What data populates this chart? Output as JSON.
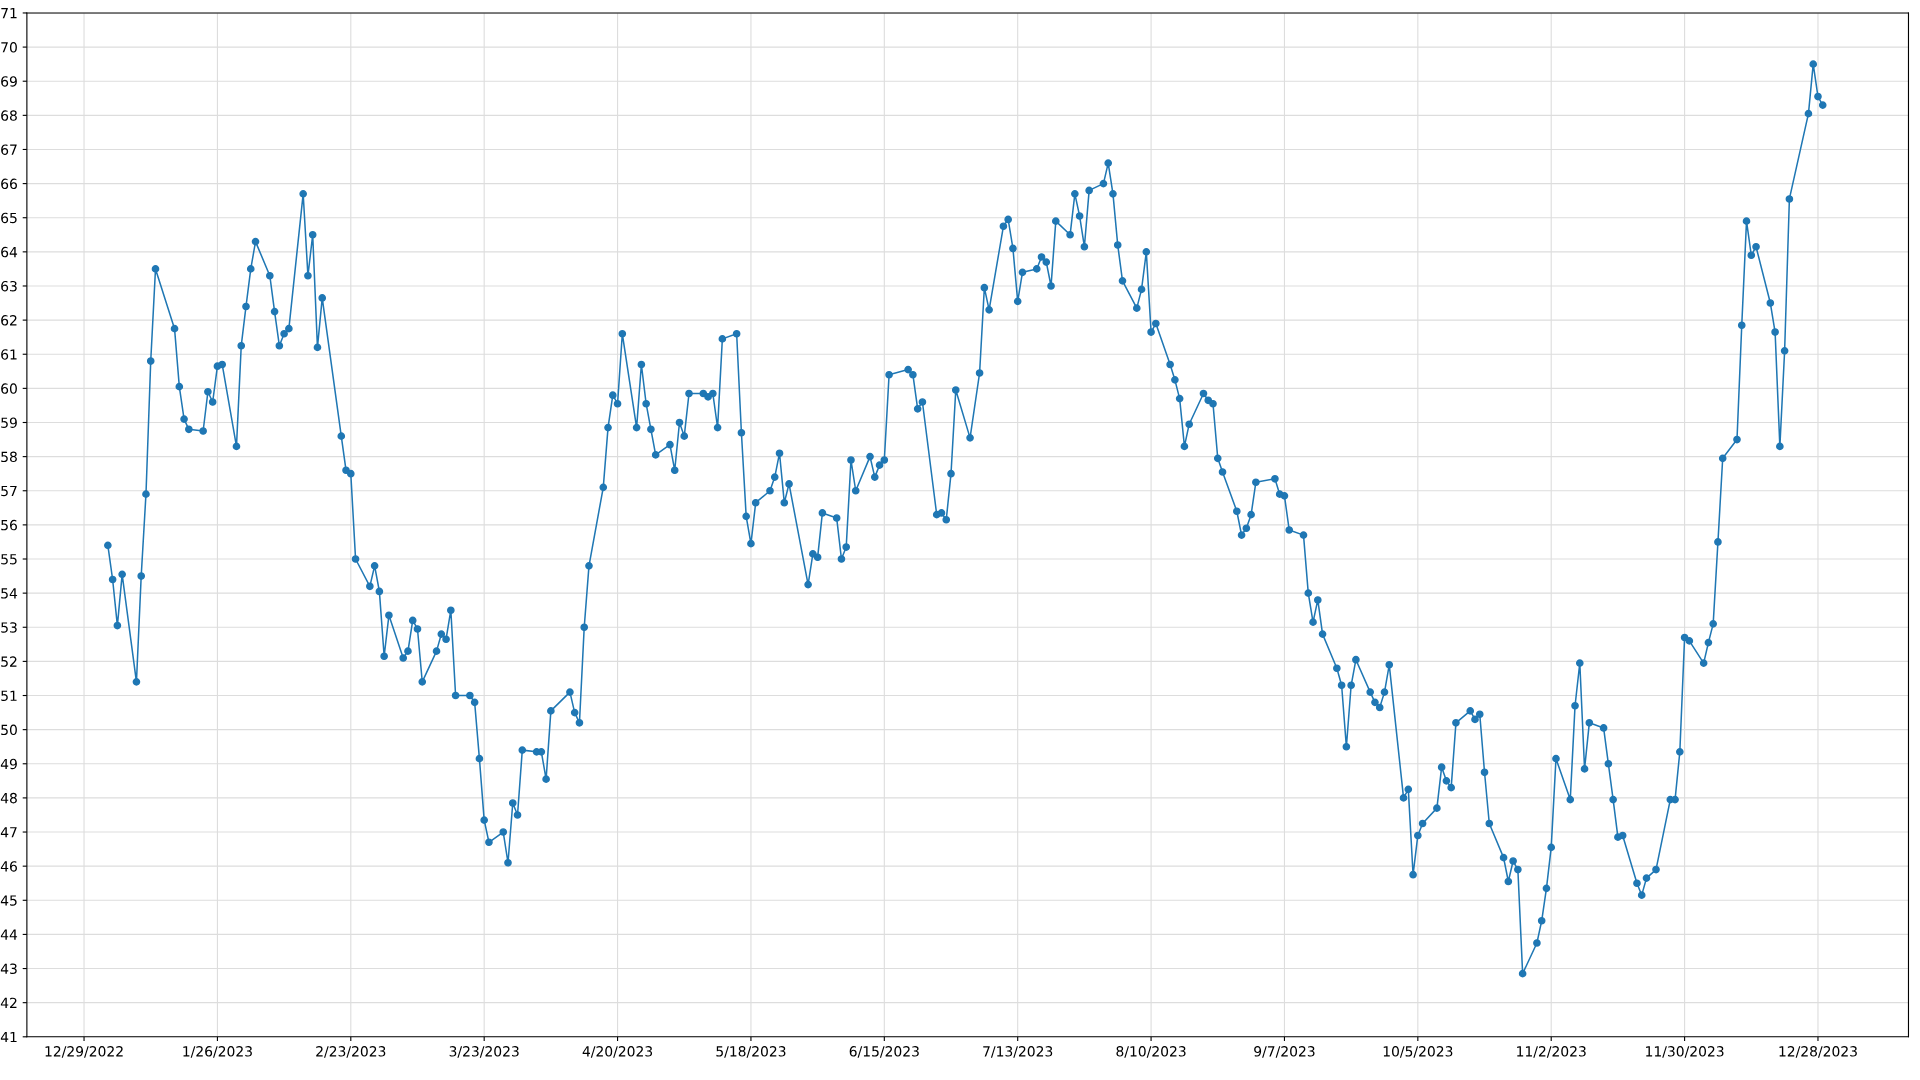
{
  "chart_data": {
    "type": "line",
    "x": [
      "2023-01-03",
      "2023-01-04",
      "2023-01-05",
      "2023-01-06",
      "2023-01-09",
      "2023-01-10",
      "2023-01-11",
      "2023-01-12",
      "2023-01-13",
      "2023-01-17",
      "2023-01-18",
      "2023-01-19",
      "2023-01-20",
      "2023-01-23",
      "2023-01-24",
      "2023-01-25",
      "2023-01-26",
      "2023-01-27",
      "2023-01-30",
      "2023-01-31",
      "2023-02-01",
      "2023-02-02",
      "2023-02-03",
      "2023-02-06",
      "2023-02-07",
      "2023-02-08",
      "2023-02-09",
      "2023-02-10",
      "2023-02-13",
      "2023-02-14",
      "2023-02-15",
      "2023-02-16",
      "2023-02-17",
      "2023-02-21",
      "2023-02-22",
      "2023-02-23",
      "2023-02-24",
      "2023-02-27",
      "2023-02-28",
      "2023-03-01",
      "2023-03-02",
      "2023-03-03",
      "2023-03-06",
      "2023-03-07",
      "2023-03-08",
      "2023-03-09",
      "2023-03-10",
      "2023-03-13",
      "2023-03-14",
      "2023-03-15",
      "2023-03-16",
      "2023-03-17",
      "2023-03-20",
      "2023-03-21",
      "2023-03-22",
      "2023-03-23",
      "2023-03-24",
      "2023-03-27",
      "2023-03-28",
      "2023-03-29",
      "2023-03-30",
      "2023-03-31",
      "2023-04-03",
      "2023-04-04",
      "2023-04-05",
      "2023-04-06",
      "2023-04-10",
      "2023-04-11",
      "2023-04-12",
      "2023-04-13",
      "2023-04-14",
      "2023-04-17",
      "2023-04-18",
      "2023-04-19",
      "2023-04-20",
      "2023-04-21",
      "2023-04-24",
      "2023-04-25",
      "2023-04-26",
      "2023-04-27",
      "2023-04-28",
      "2023-05-01",
      "2023-05-02",
      "2023-05-03",
      "2023-05-04",
      "2023-05-05",
      "2023-05-08",
      "2023-05-09",
      "2023-05-10",
      "2023-05-11",
      "2023-05-12",
      "2023-05-15",
      "2023-05-16",
      "2023-05-17",
      "2023-05-18",
      "2023-05-19",
      "2023-05-22",
      "2023-05-23",
      "2023-05-24",
      "2023-05-25",
      "2023-05-26",
      "2023-05-30",
      "2023-05-31",
      "2023-06-01",
      "2023-06-02",
      "2023-06-05",
      "2023-06-06",
      "2023-06-07",
      "2023-06-08",
      "2023-06-09",
      "2023-06-12",
      "2023-06-13",
      "2023-06-14",
      "2023-06-15",
      "2023-06-16",
      "2023-06-20",
      "2023-06-21",
      "2023-06-22",
      "2023-06-23",
      "2023-06-26",
      "2023-06-27",
      "2023-06-28",
      "2023-06-29",
      "2023-06-30",
      "2023-07-03",
      "2023-07-05",
      "2023-07-06",
      "2023-07-07",
      "2023-07-10",
      "2023-07-11",
      "2023-07-12",
      "2023-07-13",
      "2023-07-14",
      "2023-07-17",
      "2023-07-18",
      "2023-07-19",
      "2023-07-20",
      "2023-07-21",
      "2023-07-24",
      "2023-07-25",
      "2023-07-26",
      "2023-07-27",
      "2023-07-28",
      "2023-07-31",
      "2023-08-01",
      "2023-08-02",
      "2023-08-03",
      "2023-08-04",
      "2023-08-07",
      "2023-08-08",
      "2023-08-09",
      "2023-08-10",
      "2023-08-11",
      "2023-08-14",
      "2023-08-15",
      "2023-08-16",
      "2023-08-17",
      "2023-08-18",
      "2023-08-21",
      "2023-08-22",
      "2023-08-23",
      "2023-08-24",
      "2023-08-25",
      "2023-08-28",
      "2023-08-29",
      "2023-08-30",
      "2023-08-31",
      "2023-09-01",
      "2023-09-05",
      "2023-09-06",
      "2023-09-07",
      "2023-09-08",
      "2023-09-11",
      "2023-09-12",
      "2023-09-13",
      "2023-09-14",
      "2023-09-15",
      "2023-09-18",
      "2023-09-19",
      "2023-09-20",
      "2023-09-21",
      "2023-09-22",
      "2023-09-25",
      "2023-09-26",
      "2023-09-27",
      "2023-09-28",
      "2023-09-29",
      "2023-10-02",
      "2023-10-03",
      "2023-10-04",
      "2023-10-05",
      "2023-10-06",
      "2023-10-09",
      "2023-10-10",
      "2023-10-11",
      "2023-10-12",
      "2023-10-13",
      "2023-10-16",
      "2023-10-17",
      "2023-10-18",
      "2023-10-19",
      "2023-10-20",
      "2023-10-23",
      "2023-10-24",
      "2023-10-25",
      "2023-10-26",
      "2023-10-27",
      "2023-10-30",
      "2023-10-31",
      "2023-11-01",
      "2023-11-02",
      "2023-11-03",
      "2023-11-06",
      "2023-11-07",
      "2023-11-08",
      "2023-11-09",
      "2023-11-10",
      "2023-11-13",
      "2023-11-14",
      "2023-11-15",
      "2023-11-16",
      "2023-11-17",
      "2023-11-20",
      "2023-11-21",
      "2023-11-22",
      "2023-11-24",
      "2023-11-27",
      "2023-11-28",
      "2023-11-29",
      "2023-11-30",
      "2023-12-01",
      "2023-12-04",
      "2023-12-05",
      "2023-12-06",
      "2023-12-07",
      "2023-12-08",
      "2023-12-11",
      "2023-12-12",
      "2023-12-13",
      "2023-12-14",
      "2023-12-15",
      "2023-12-18",
      "2023-12-19",
      "2023-12-20",
      "2023-12-21",
      "2023-12-22",
      "2023-12-26",
      "2023-12-27",
      "2023-12-28",
      "2023-12-29"
    ],
    "series": [
      {
        "color": "#1f77b4",
        "values": [
          55.4,
          54.4,
          53.05,
          54.55,
          51.4,
          54.5,
          56.9,
          60.8,
          63.5,
          61.75,
          60.05,
          59.1,
          58.8,
          58.75,
          59.9,
          59.6,
          60.65,
          60.7,
          58.3,
          61.25,
          62.4,
          63.5,
          64.3,
          63.3,
          62.25,
          61.25,
          61.6,
          61.75,
          65.7,
          63.3,
          64.5,
          61.2,
          62.65,
          58.6,
          57.6,
          57.5,
          55.0,
          54.2,
          54.8,
          54.05,
          52.15,
          53.35,
          52.1,
          52.3,
          53.2,
          52.95,
          51.4,
          52.3,
          52.8,
          52.65,
          53.5,
          51.0,
          51.0,
          50.8,
          49.15,
          47.35,
          46.7,
          47.0,
          46.1,
          47.85,
          47.5,
          49.4,
          49.35,
          49.35,
          48.55,
          50.55,
          51.1,
          50.5,
          50.2,
          53.0,
          54.8,
          57.1,
          58.85,
          59.8,
          59.55,
          61.6,
          58.85,
          60.7,
          59.55,
          58.8,
          58.05,
          58.35,
          57.6,
          59.0,
          58.6,
          59.85,
          59.85,
          59.75,
          59.85,
          58.85,
          61.45,
          61.6,
          58.7,
          56.25,
          55.45,
          56.65,
          57.0,
          57.4,
          58.1,
          56.65,
          57.2,
          54.25,
          55.15,
          55.05,
          56.35,
          56.2,
          55.0,
          55.35,
          57.9,
          57.0,
          58.0,
          57.4,
          57.75,
          57.9,
          60.4,
          60.55,
          60.4,
          59.4,
          59.6,
          56.3,
          56.35,
          56.15,
          57.5,
          59.95,
          58.55,
          60.45,
          62.95,
          62.3,
          64.75,
          64.95,
          64.1,
          62.55,
          63.4,
          63.5,
          63.85,
          63.7,
          63.0,
          64.9,
          64.5,
          65.7,
          65.05,
          64.15,
          65.8,
          66.0,
          66.6,
          65.7,
          64.2,
          63.15,
          62.35,
          62.9,
          64.0,
          61.65,
          61.9,
          60.7,
          60.25,
          59.7,
          58.3,
          58.95,
          59.85,
          59.65,
          59.55,
          57.95,
          57.55,
          56.4,
          55.7,
          55.9,
          56.3,
          57.25,
          57.35,
          56.9,
          56.85,
          55.85,
          55.7,
          54.0,
          53.15,
          53.8,
          52.8,
          51.8,
          51.3,
          49.5,
          51.3,
          52.05,
          51.1,
          50.8,
          50.65,
          51.1,
          51.9,
          48.0,
          48.25,
          45.75,
          46.9,
          47.25,
          47.7,
          48.9,
          48.5,
          48.3,
          50.2,
          50.55,
          50.3,
          50.45,
          48.75,
          47.25,
          46.25,
          45.55,
          46.15,
          45.9,
          42.85,
          43.75,
          44.4,
          45.35,
          46.55,
          49.15,
          47.95,
          50.7,
          51.95,
          48.85,
          50.2,
          50.05,
          49.0,
          47.95,
          46.85,
          46.9,
          45.5,
          45.15,
          45.65,
          45.9,
          47.95,
          47.95,
          49.35,
          52.7,
          52.6,
          51.95,
          52.55,
          53.1,
          55.5,
          57.95,
          58.5,
          61.85,
          64.9,
          63.9,
          64.15,
          62.5,
          61.65,
          58.3,
          61.1,
          65.55,
          68.05,
          69.5,
          68.55,
          68.3
        ]
      }
    ],
    "xlim": [
      "2022-12-17",
      "2024-01-16"
    ],
    "xticks": [
      {
        "value": "2022-12-29",
        "label": "12/29/2022"
      },
      {
        "value": "2023-01-26",
        "label": "1/26/2023"
      },
      {
        "value": "2023-02-23",
        "label": "2/23/2023"
      },
      {
        "value": "2023-03-23",
        "label": "3/23/2023"
      },
      {
        "value": "2023-04-20",
        "label": "4/20/2023"
      },
      {
        "value": "2023-05-18",
        "label": "5/18/2023"
      },
      {
        "value": "2023-06-15",
        "label": "6/15/2023"
      },
      {
        "value": "2023-07-13",
        "label": "7/13/2023"
      },
      {
        "value": "2023-08-10",
        "label": "8/10/2023"
      },
      {
        "value": "2023-09-07",
        "label": "9/7/2023"
      },
      {
        "value": "2023-10-05",
        "label": "10/5/2023"
      },
      {
        "value": "2023-11-02",
        "label": "11/2/2023"
      },
      {
        "value": "2023-11-30",
        "label": "11/30/2023"
      },
      {
        "value": "2023-12-28",
        "label": "12/28/2023"
      }
    ],
    "ylim": [
      41,
      71
    ],
    "yticks": [
      41,
      42,
      43,
      44,
      45,
      46,
      47,
      48,
      49,
      50,
      51,
      52,
      53,
      54,
      55,
      56,
      57,
      58,
      59,
      60,
      61,
      62,
      63,
      64,
      65,
      66,
      67,
      68,
      69,
      70,
      71
    ],
    "grid": true,
    "marker": "circle",
    "line_style": "solid"
  }
}
